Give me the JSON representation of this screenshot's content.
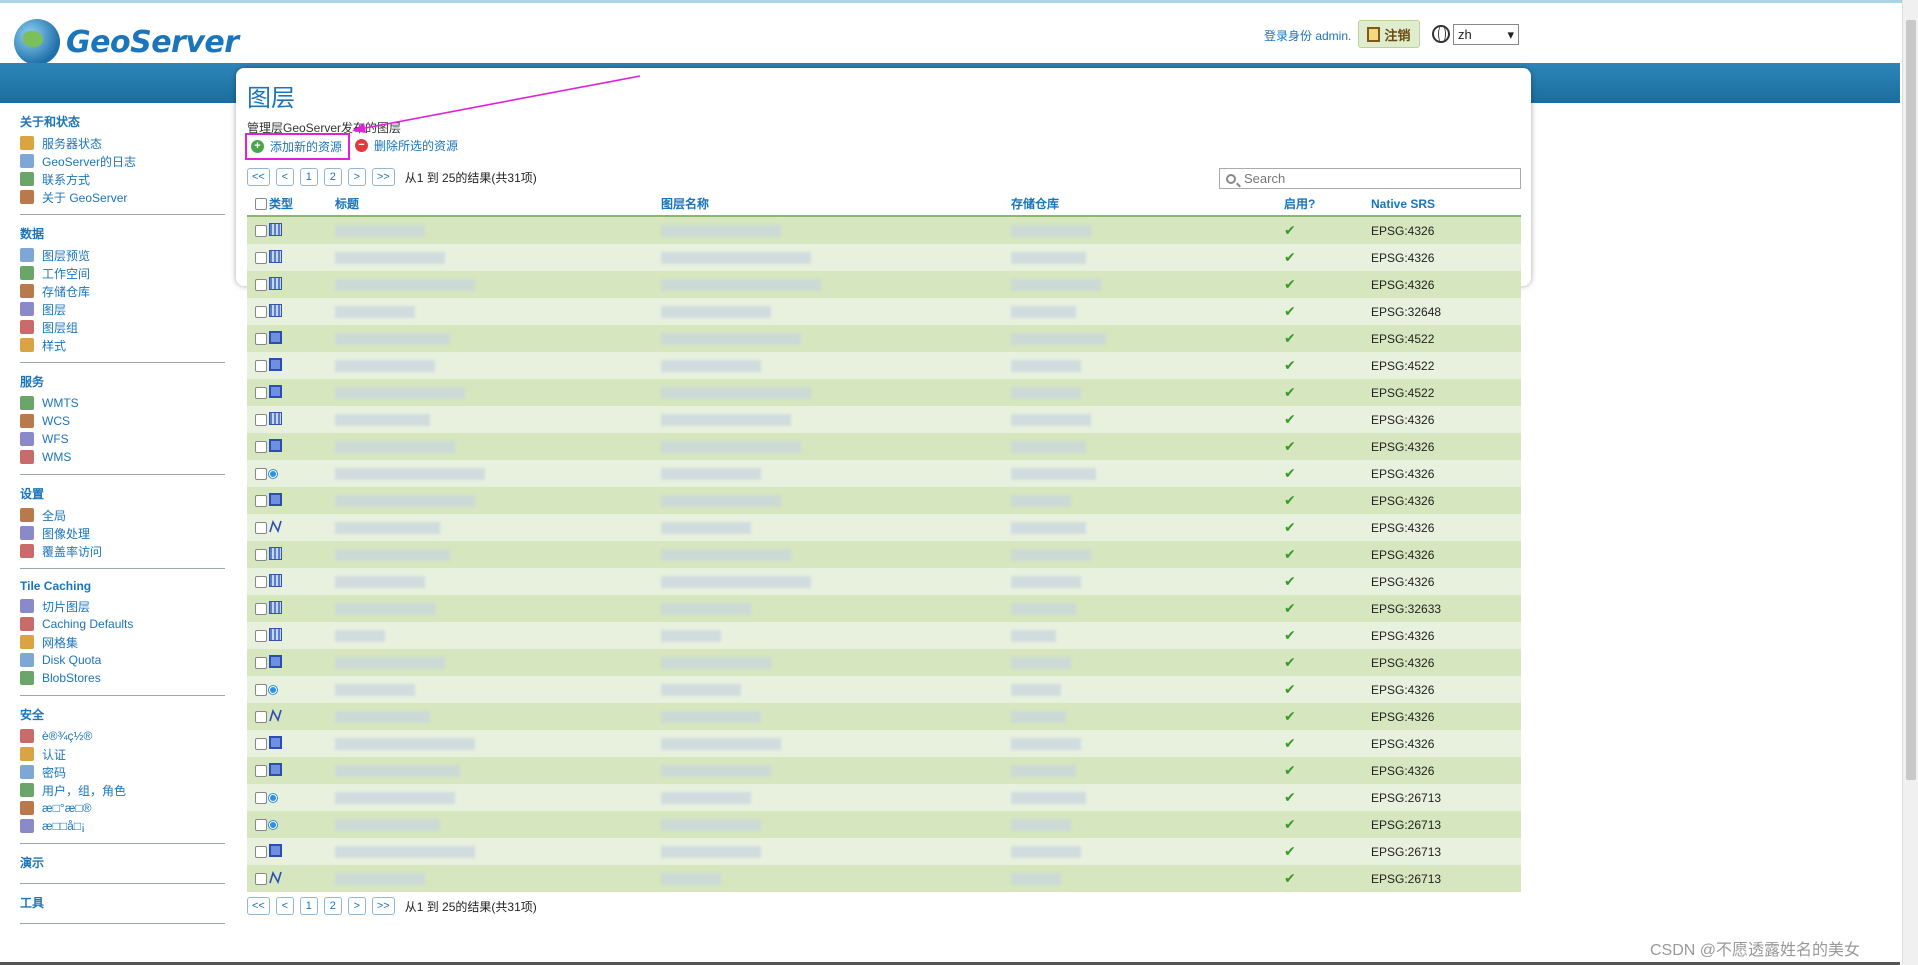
{
  "brand": {
    "name": "GeoServer"
  },
  "header": {
    "login_text": "登录身份 admin.",
    "logout_label": "注销",
    "language": "zh"
  },
  "sidebar": {
    "sections": [
      {
        "title": "关于和状态",
        "items": [
          {
            "label": "服务器状态",
            "icon": "server-status-icon"
          },
          {
            "label": "GeoServer的日志",
            "icon": "log-icon"
          },
          {
            "label": "联系方式",
            "icon": "contact-icon"
          },
          {
            "label": "关于 GeoServer",
            "icon": "about-icon"
          }
        ]
      },
      {
        "title": "数据",
        "items": [
          {
            "label": "图层预览",
            "icon": "layer-preview-icon"
          },
          {
            "label": "工作空间",
            "icon": "workspace-icon"
          },
          {
            "label": "存储仓库",
            "icon": "store-icon"
          },
          {
            "label": "图层",
            "icon": "layers-icon"
          },
          {
            "label": "图层组",
            "icon": "layer-group-icon"
          },
          {
            "label": "样式",
            "icon": "style-icon"
          }
        ]
      },
      {
        "title": "服务",
        "items": [
          {
            "label": "WMTS",
            "icon": "wmts-icon"
          },
          {
            "label": "WCS",
            "icon": "wcs-icon"
          },
          {
            "label": "WFS",
            "icon": "wfs-icon"
          },
          {
            "label": "WMS",
            "icon": "wms-icon"
          }
        ]
      },
      {
        "title": "设置",
        "items": [
          {
            "label": "全局",
            "icon": "global-icon"
          },
          {
            "label": "图像处理",
            "icon": "image-processing-icon"
          },
          {
            "label": "覆盖率访问",
            "icon": "coverage-access-icon"
          }
        ]
      },
      {
        "title": "Tile Caching",
        "items": [
          {
            "label": "切片图层",
            "icon": "tile-layers-icon"
          },
          {
            "label": "Caching Defaults",
            "icon": "caching-defaults-icon"
          },
          {
            "label": "网格集",
            "icon": "gridsets-icon"
          },
          {
            "label": "Disk Quota",
            "icon": "disk-quota-icon"
          },
          {
            "label": "BlobStores",
            "icon": "blobstores-icon"
          }
        ]
      },
      {
        "title": "安全",
        "items": [
          {
            "label": "è®¾ç½®",
            "icon": "key-icon"
          },
          {
            "label": "认证",
            "icon": "shield-icon"
          },
          {
            "label": "密码",
            "icon": "lock-icon"
          },
          {
            "label": "用户，组，角色",
            "icon": "users-icon"
          },
          {
            "label": "æ□°æ□®",
            "icon": "data-security-icon"
          },
          {
            "label": "æ□□å□¡",
            "icon": "service-security-icon"
          }
        ]
      },
      {
        "title": "演示",
        "items": []
      },
      {
        "title": "工具",
        "items": []
      }
    ]
  },
  "main": {
    "title": "图层",
    "description": "管理层GeoServer发布的图层",
    "add_label": "添加新的资源",
    "remove_label": "删除所选的资源",
    "search_placeholder": "Search",
    "pager": {
      "first": "<<",
      "prev": "<",
      "page1": "1",
      "page2": "2",
      "next": ">",
      "last": ">>",
      "info": "从1 到 25的结果(共31项)"
    },
    "columns": {
      "type": "类型",
      "title": "标题",
      "name": "图层名称",
      "store": "存储仓库",
      "enabled": "启用?",
      "srs": "Native SRS"
    },
    "rows": [
      {
        "type": "raster",
        "srs": "EPSG:4326"
      },
      {
        "type": "raster",
        "srs": "EPSG:4326"
      },
      {
        "type": "raster",
        "srs": "EPSG:4326"
      },
      {
        "type": "raster",
        "srs": "EPSG:32648"
      },
      {
        "type": "polygon",
        "srs": "EPSG:4522"
      },
      {
        "type": "polygon",
        "srs": "EPSG:4522"
      },
      {
        "type": "polygon",
        "srs": "EPSG:4522"
      },
      {
        "type": "raster",
        "srs": "EPSG:4326"
      },
      {
        "type": "polygon",
        "srs": "EPSG:4326"
      },
      {
        "type": "point",
        "srs": "EPSG:4326"
      },
      {
        "type": "polygon",
        "srs": "EPSG:4326"
      },
      {
        "type": "line",
        "srs": "EPSG:4326"
      },
      {
        "type": "raster",
        "srs": "EPSG:4326"
      },
      {
        "type": "raster",
        "srs": "EPSG:4326"
      },
      {
        "type": "raster",
        "srs": "EPSG:32633"
      },
      {
        "type": "raster",
        "srs": "EPSG:4326"
      },
      {
        "type": "polygon",
        "srs": "EPSG:4326"
      },
      {
        "type": "point",
        "srs": "EPSG:4326"
      },
      {
        "type": "line",
        "srs": "EPSG:4326"
      },
      {
        "type": "polygon",
        "srs": "EPSG:4326"
      },
      {
        "type": "polygon",
        "srs": "EPSG:4326"
      },
      {
        "type": "point",
        "srs": "EPSG:26713"
      },
      {
        "type": "point",
        "srs": "EPSG:26713"
      },
      {
        "type": "polygon",
        "srs": "EPSG:26713"
      },
      {
        "type": "line",
        "srs": "EPSG:26713"
      }
    ],
    "enabled_symbol": "✔"
  },
  "watermark": "CSDN @不愿透露姓名的美女"
}
